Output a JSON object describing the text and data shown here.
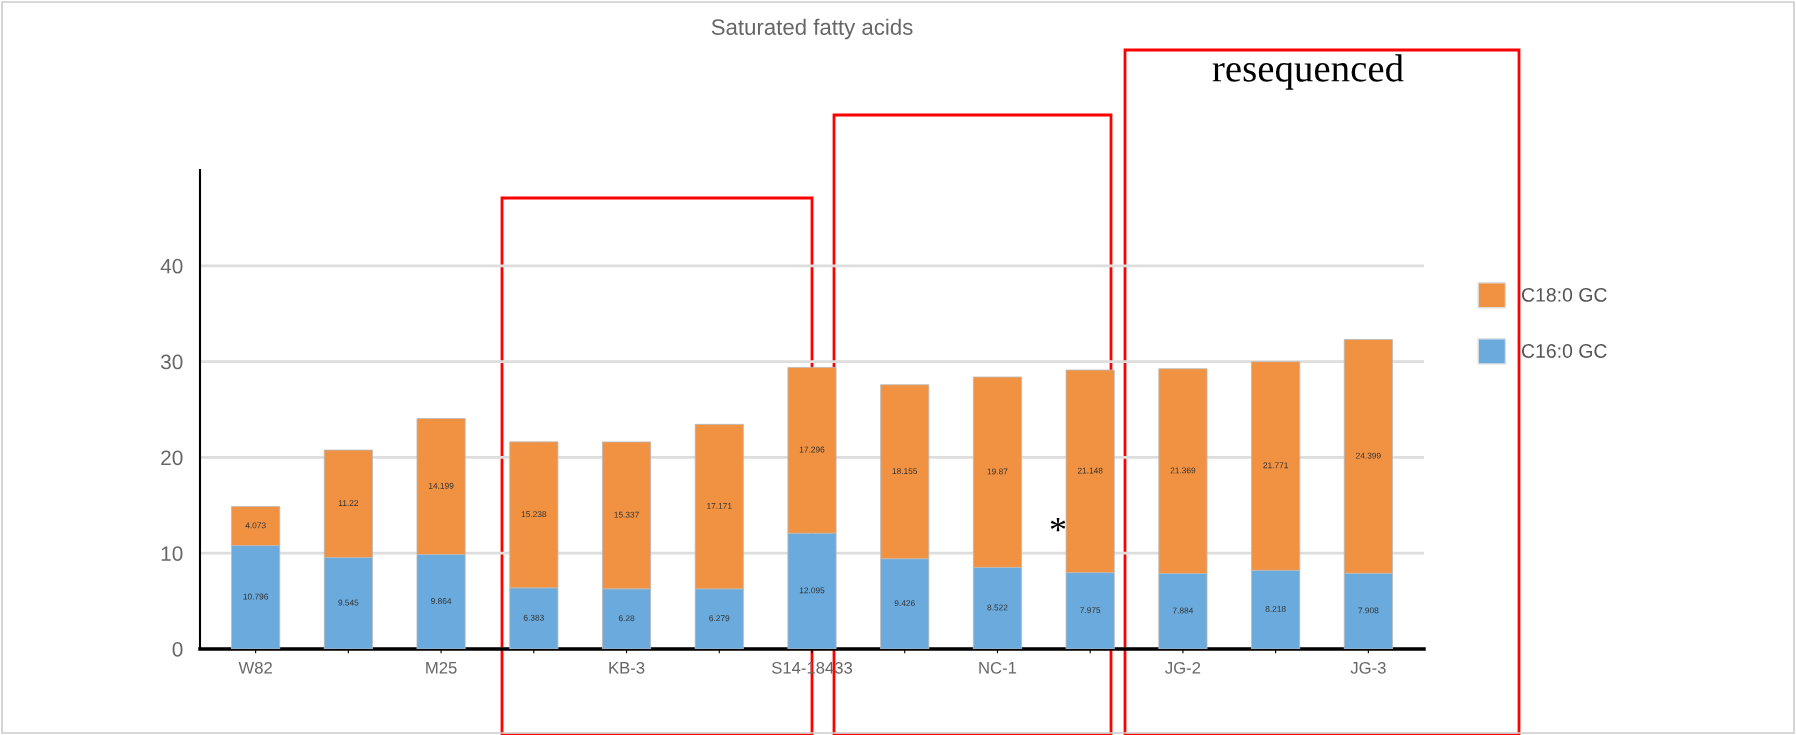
{
  "chart_data": {
    "type": "bar",
    "title": "Saturated fatty acids",
    "stacked": true,
    "categories": [
      "W82",
      null,
      "M25",
      null,
      "KB-3",
      null,
      "S14-18433",
      null,
      "NC-1",
      null,
      "JG-2",
      null,
      "JG-3"
    ],
    "series": [
      {
        "name": "C16:0 GC",
        "color": "#6aaadc",
        "values": [
          10.796,
          9.545,
          9.864,
          6.383,
          6.28,
          6.279,
          12.095,
          9.426,
          8.522,
          7.975,
          7.884,
          8.218,
          7.908
        ]
      },
      {
        "name": "C18:0 GC",
        "color": "#f09241",
        "values": [
          4.073,
          11.22,
          14.199,
          15.238,
          15.337,
          17.171,
          17.296,
          18.155,
          19.87,
          21.148,
          21.369,
          21.771,
          24.399
        ]
      }
    ],
    "ylim": [
      0,
      50
    ],
    "yticks": [
      0,
      10,
      20,
      30,
      40
    ],
    "grid": "y",
    "legend": "right",
    "data_labels": true,
    "annotations": [
      "resequenced",
      "*"
    ]
  }
}
